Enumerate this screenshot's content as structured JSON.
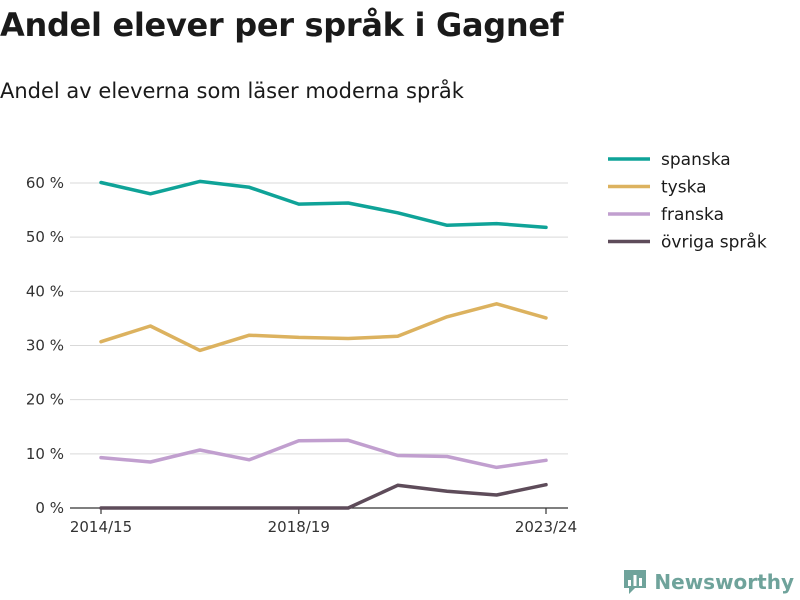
{
  "header": {
    "title": "Andel elever per språk i Gagnef",
    "subtitle": "Andel av eleverna som läser moderna språk"
  },
  "brand": {
    "name": "Newsworthy",
    "icon": "bar-chart-icon",
    "color": "#6fa39b"
  },
  "chart_data": {
    "type": "line",
    "title": "Andel elever per språk i Gagnef",
    "subtitle": "Andel av eleverna som läser moderna språk",
    "xlabel": "",
    "ylabel": "",
    "x": [
      "2014/15",
      "2015/16",
      "2016/17",
      "2017/18",
      "2018/19",
      "2019/20",
      "2020/21",
      "2021/22",
      "2022/23",
      "2023/24"
    ],
    "x_tick_labels": [
      "2014/15",
      "2018/19",
      "2023/24"
    ],
    "y_ticks": [
      0,
      10,
      20,
      30,
      40,
      50,
      60
    ],
    "y_tick_labels": [
      "0 %",
      "10 %",
      "20 %",
      "30 %",
      "40 %",
      "50 %",
      "60 %"
    ],
    "ylim": [
      0,
      60
    ],
    "grid": true,
    "legend": "right",
    "series": [
      {
        "name": "spanska",
        "color": "#0fa398",
        "values": [
          60.1,
          58.0,
          60.3,
          59.2,
          56.1,
          56.3,
          54.5,
          52.2,
          52.5,
          51.8
        ]
      },
      {
        "name": "tyska",
        "color": "#dcb25f",
        "values": [
          30.7,
          33.6,
          29.1,
          31.9,
          31.5,
          31.3,
          31.7,
          35.3,
          37.7,
          35.1
        ]
      },
      {
        "name": "franska",
        "color": "#c19fcf",
        "values": [
          9.3,
          8.5,
          10.7,
          8.9,
          12.4,
          12.5,
          9.7,
          9.5,
          7.5,
          8.8
        ]
      },
      {
        "name": "övriga språk",
        "color": "#5e4c5a",
        "values": [
          0,
          0,
          0,
          0,
          0,
          0,
          4.2,
          3.1,
          2.4,
          4.3
        ]
      }
    ]
  }
}
